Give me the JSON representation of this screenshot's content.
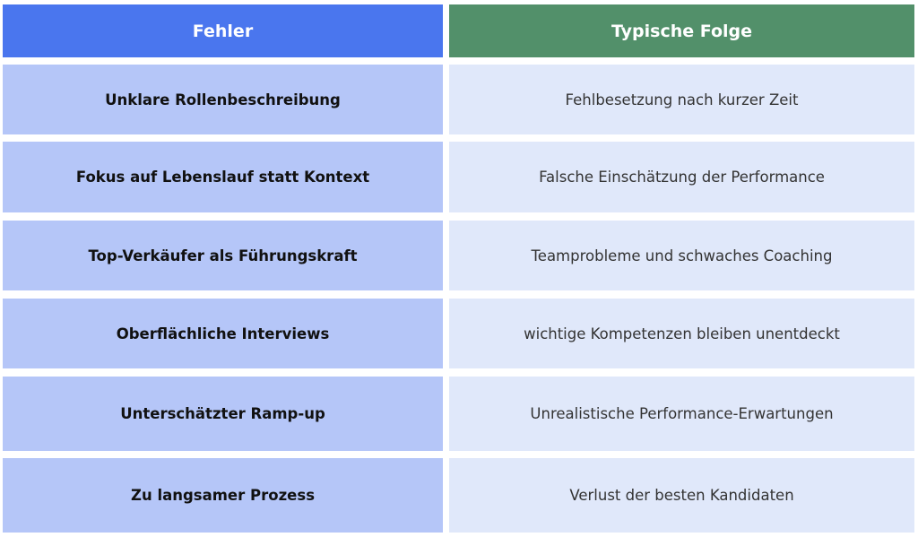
{
  "header": {
    "col1": "Fehler",
    "col2": "Typische Folge"
  },
  "colors": {
    "header_left": "#4A76EE",
    "header_right": "#52906A",
    "cell_left": "#B5C6F8",
    "cell_right": "#E0E8FA"
  },
  "rows": [
    {
      "fehler": "Unklare Rollenbeschreibung",
      "folge": "Fehlbesetzung nach kurzer Zeit"
    },
    {
      "fehler": "Fokus auf Lebenslauf statt Kontext",
      "folge": "Falsche Einschätzung der Performance"
    },
    {
      "fehler": "Top-Verkäufer als Führungskraft",
      "folge": "Teamprobleme und schwaches Coaching"
    },
    {
      "fehler": "Oberflächliche Interviews",
      "folge": "wichtige Kompetenzen bleiben unentdeckt"
    },
    {
      "fehler": "Unterschätzter Ramp-up",
      "folge": "Unrealistische Performance-Erwartungen"
    },
    {
      "fehler": "Zu langsamer Prozess",
      "folge": "Verlust der besten Kandidaten"
    }
  ]
}
